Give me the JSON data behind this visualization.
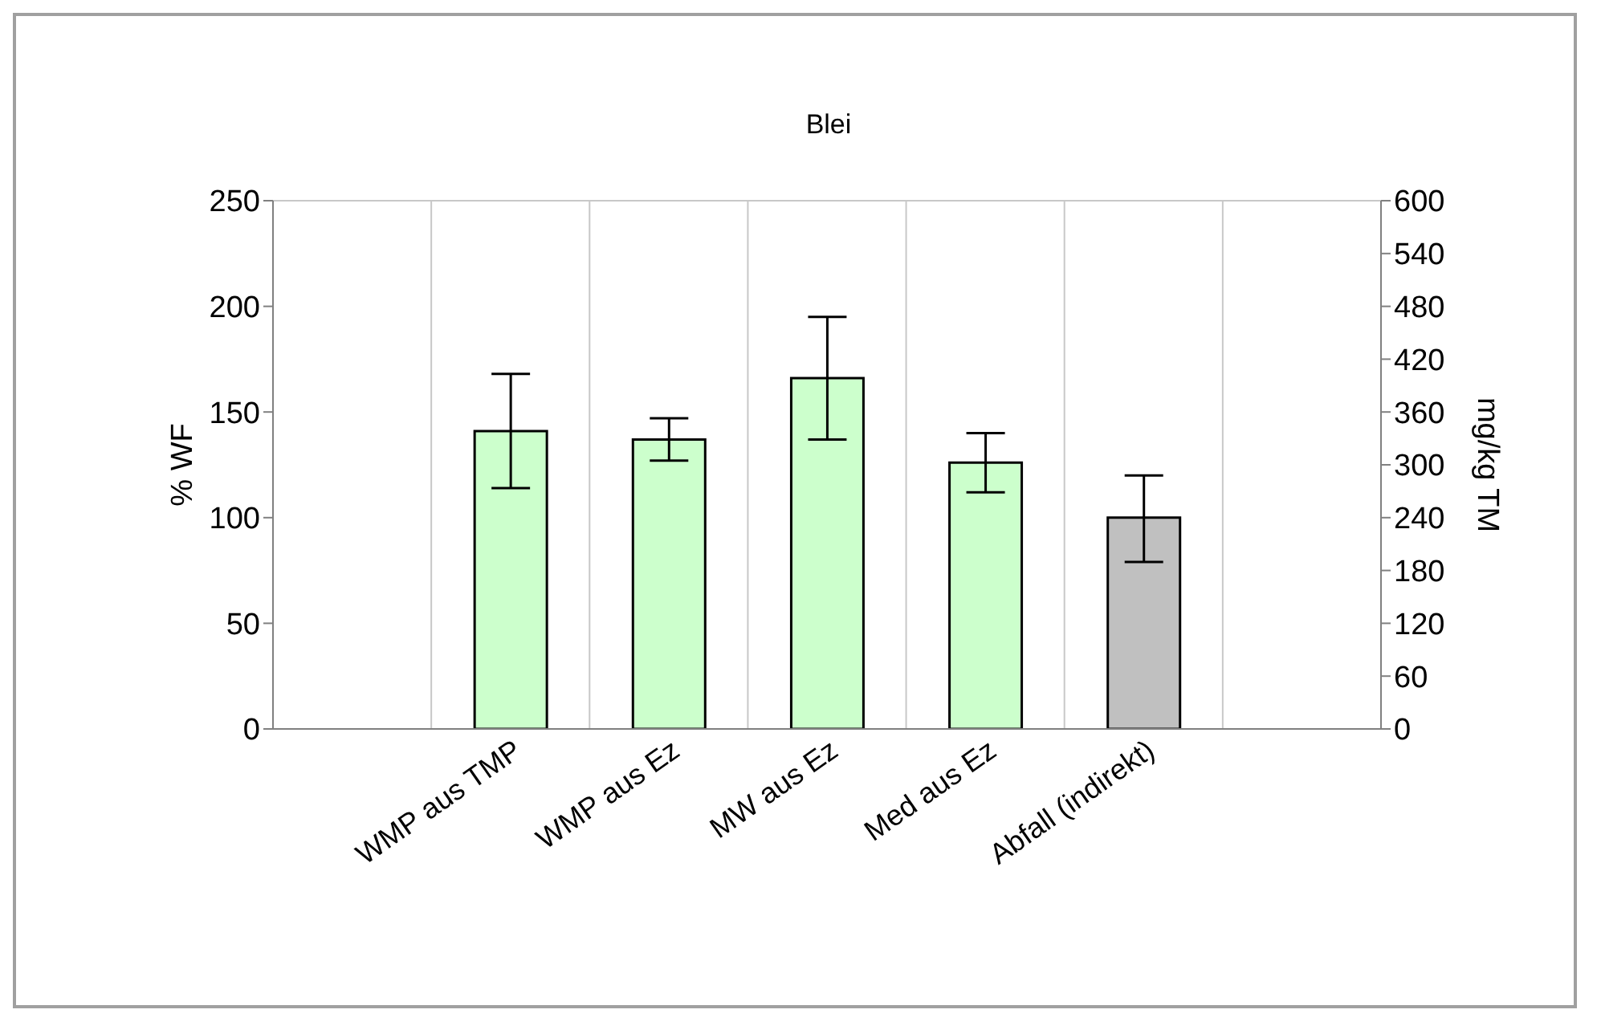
{
  "chart_data": {
    "type": "bar",
    "title": "Blei",
    "ylabel": "% WF",
    "y2label": "mg/kg TM",
    "categories": [
      null,
      "WMP aus TMP",
      "WMP aus Ez",
      "MW aus Ez",
      "Med aus Ez",
      "Abfall  (indirekt)",
      null
    ],
    "values": [
      null,
      141,
      137,
      166,
      126,
      100,
      null
    ],
    "colors": [
      "#ccffcc",
      "#ccffcc",
      "#ccffcc",
      "#ccffcc",
      "#ccffcc",
      "#c0c0c0",
      "#ccffcc"
    ],
    "errors": [
      null,
      [
        114,
        168
      ],
      [
        127,
        147
      ],
      [
        137,
        195
      ],
      [
        112,
        140
      ],
      [
        79,
        120
      ],
      null
    ],
    "ylim": [
      0,
      250
    ],
    "yticks": [
      0,
      50,
      100,
      150,
      200,
      250
    ],
    "y2lim": [
      0,
      600
    ],
    "y2ticks": [
      0,
      60,
      120,
      180,
      240,
      300,
      360,
      420,
      480,
      540,
      600
    ],
    "grid": true
  }
}
